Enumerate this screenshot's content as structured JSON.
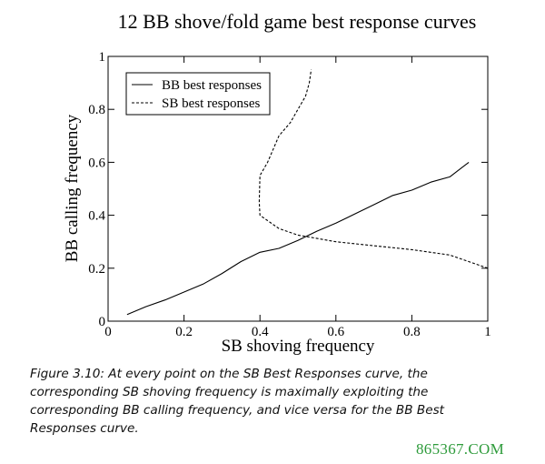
{
  "chart_data": {
    "type": "line",
    "title": "12 BB shove/fold game best response curves",
    "xlabel": "SB shoving frequency",
    "ylabel": "BB calling frequency",
    "xlim": [
      0,
      1
    ],
    "ylim": [
      0,
      1
    ],
    "x_ticks": [
      {
        "value": 0,
        "label": "0"
      },
      {
        "value": 0.2,
        "label": "0.2"
      },
      {
        "value": 0.4,
        "label": "0.4"
      },
      {
        "value": 0.6,
        "label": "0.6"
      },
      {
        "value": 0.8,
        "label": "0.8"
      },
      {
        "value": 1,
        "label": "1"
      }
    ],
    "y_ticks": [
      {
        "value": 0,
        "label": "0"
      },
      {
        "value": 0.2,
        "label": "0.2"
      },
      {
        "value": 0.4,
        "label": "0.4"
      },
      {
        "value": 0.6,
        "label": "0.6"
      },
      {
        "value": 0.8,
        "label": "0.8"
      },
      {
        "value": 1,
        "label": "1"
      }
    ],
    "grid": false,
    "legend_position": "top-left",
    "series": [
      {
        "name": "BB best responses",
        "style": "solid",
        "color": "#000000",
        "x": [
          0.05,
          0.1,
          0.15,
          0.2,
          0.25,
          0.3,
          0.35,
          0.4,
          0.45,
          0.5,
          0.55,
          0.6,
          0.65,
          0.7,
          0.75,
          0.8,
          0.85,
          0.9,
          0.95
        ],
        "y": [
          0.025,
          0.055,
          0.08,
          0.11,
          0.14,
          0.18,
          0.225,
          0.26,
          0.275,
          0.305,
          0.34,
          0.37,
          0.405,
          0.44,
          0.475,
          0.495,
          0.525,
          0.545,
          0.6
        ]
      },
      {
        "name": "SB best responses",
        "style": "dashed",
        "color": "#000000",
        "x": [
          1.0,
          0.9,
          0.8,
          0.7,
          0.6,
          0.5,
          0.45,
          0.4,
          0.398,
          0.4,
          0.42,
          0.45,
          0.48,
          0.5,
          0.52,
          0.53,
          0.535
        ],
        "y": [
          0.2,
          0.25,
          0.27,
          0.285,
          0.3,
          0.325,
          0.35,
          0.4,
          0.45,
          0.55,
          0.6,
          0.7,
          0.75,
          0.8,
          0.85,
          0.9,
          0.95
        ]
      }
    ]
  },
  "caption": "Figure 3.10: At every point on the SB Best Responses curve, the corresponding SB shoving frequency is maximally exploiting the corresponding BB calling frequency, and vice versa for the BB Best Responses curve.",
  "watermark": "865367.COM"
}
